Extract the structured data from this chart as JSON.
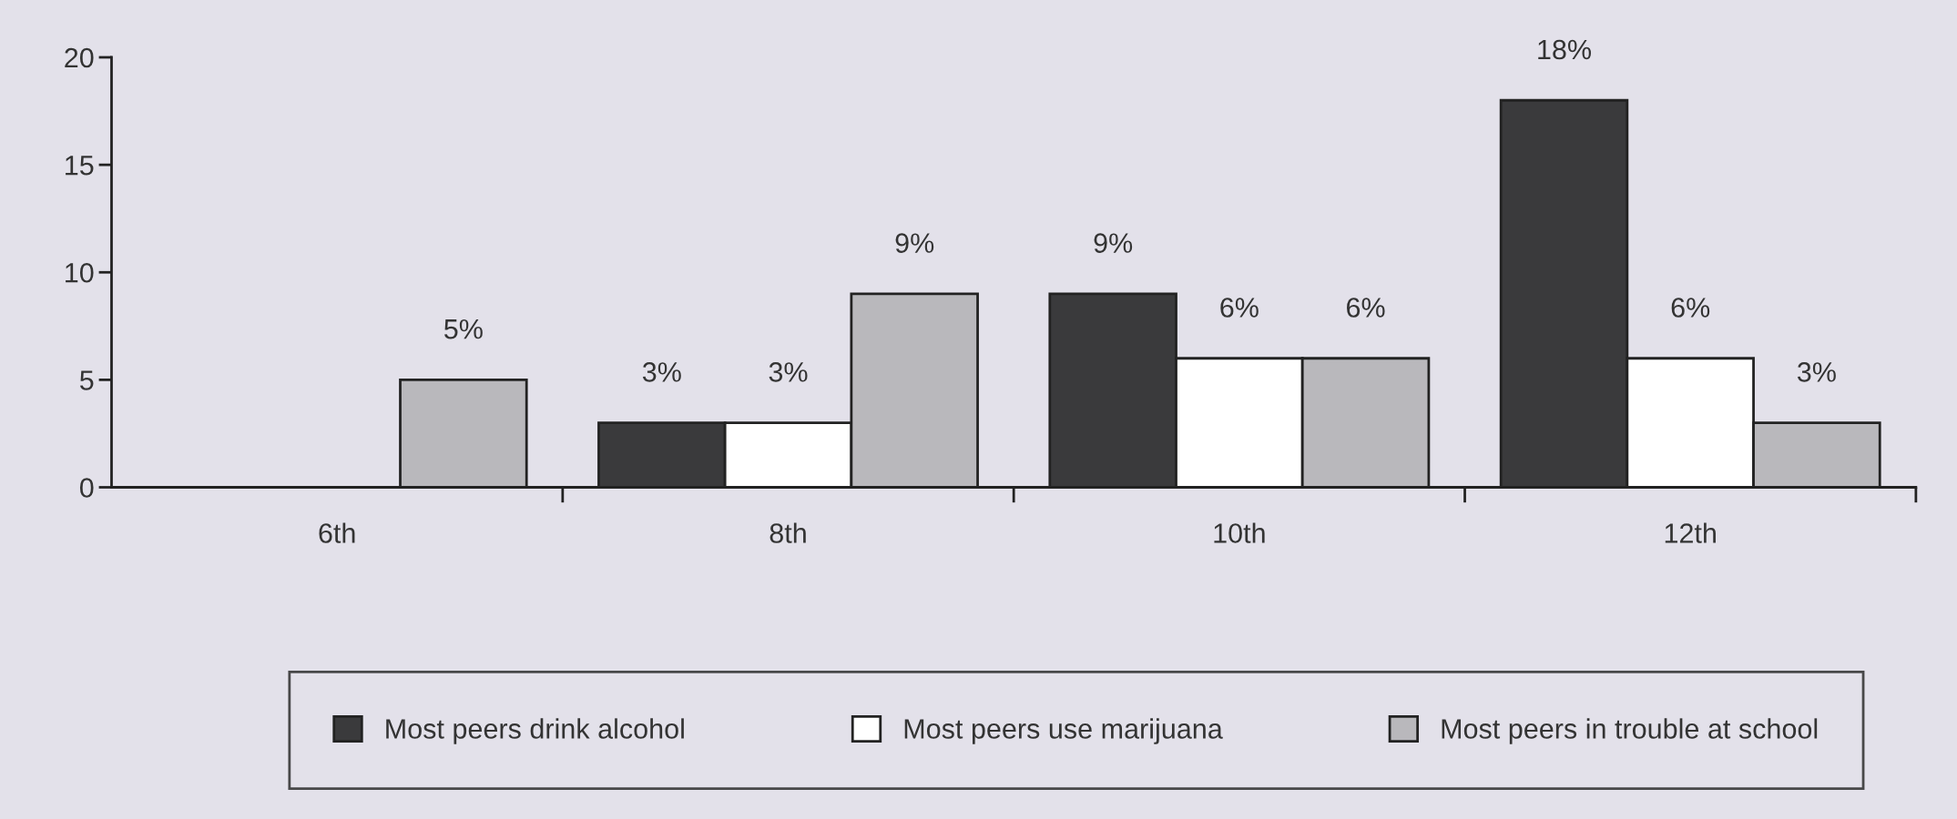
{
  "chart_data": {
    "type": "bar",
    "categories": [
      "6th",
      "8th",
      "10th",
      "12th"
    ],
    "series": [
      {
        "name": "Most peers drink alcohol",
        "color": "#3a3a3c",
        "values": [
          null,
          3,
          9,
          18
        ],
        "value_labels": [
          null,
          "3%",
          "9%",
          "18%"
        ]
      },
      {
        "name": "Most peers use marijuana",
        "color": "#ffffff",
        "values": [
          null,
          3,
          6,
          6
        ],
        "value_labels": [
          null,
          "3%",
          "6%",
          "6%"
        ]
      },
      {
        "name": "Most peers in trouble at school",
        "color": "#b9b8bc",
        "values": [
          5,
          9,
          6,
          3
        ],
        "value_labels": [
          "5%",
          "9%",
          "6%",
          "3%"
        ]
      }
    ],
    "ylim": [
      0,
      20
    ],
    "yticks": [
      0,
      5,
      10,
      15,
      20
    ],
    "grid": false,
    "legend": "bottom"
  }
}
